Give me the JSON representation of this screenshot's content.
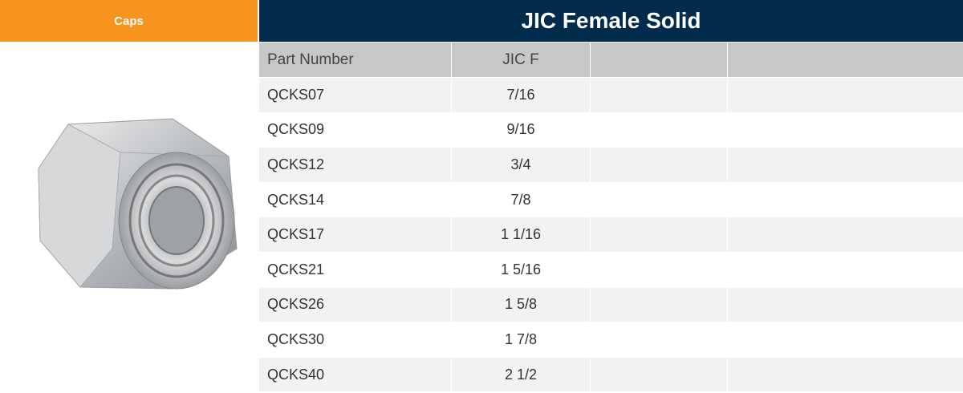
{
  "header": {
    "category": "Caps"
  },
  "table": {
    "title": "JIC Female Solid",
    "columns": [
      "Part Number",
      "JIC F"
    ],
    "rows": [
      [
        "QCKS07",
        "7/16"
      ],
      [
        "QCKS09",
        "9/16"
      ],
      [
        "QCKS12",
        "3/4"
      ],
      [
        "QCKS14",
        "7/8"
      ],
      [
        "QCKS17",
        "1 1/16"
      ],
      [
        "QCKS21",
        "1 5/16"
      ],
      [
        "QCKS26",
        "1 5/8"
      ],
      [
        "QCKS30",
        "1 7/8"
      ],
      [
        "QCKS40",
        "2 1/2"
      ]
    ]
  }
}
